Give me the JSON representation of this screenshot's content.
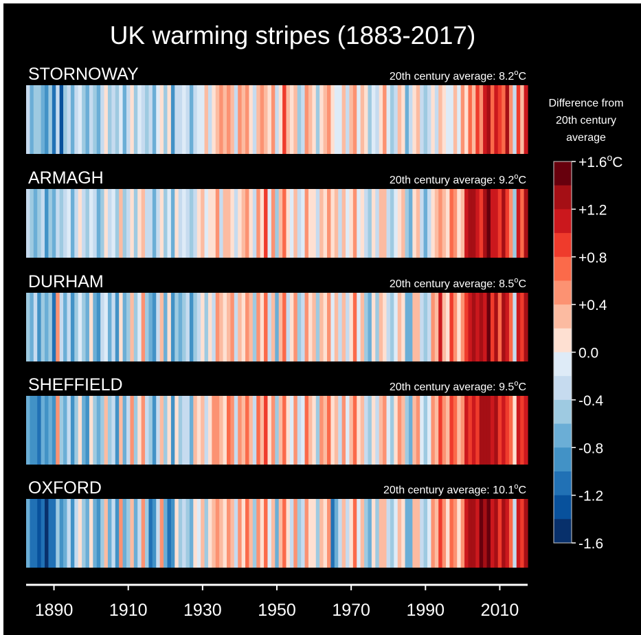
{
  "title": "UK warming stripes (1883-2017)",
  "legend": {
    "title_lines": [
      "Difference from",
      "20th century",
      "average"
    ],
    "ticks": [
      {
        "value": 1.6,
        "label": "+1.6",
        "unit": "oC"
      },
      {
        "value": 1.2,
        "label": "+1.2",
        "unit": ""
      },
      {
        "value": 0.8,
        "label": "+0.8",
        "unit": ""
      },
      {
        "value": 0.4,
        "label": "+0.4",
        "unit": ""
      },
      {
        "value": 0.0,
        "label": "0.0",
        "unit": ""
      },
      {
        "value": -0.4,
        "label": "-0.4",
        "unit": ""
      },
      {
        "value": -0.8,
        "label": "-0.8",
        "unit": ""
      },
      {
        "value": -1.2,
        "label": "-1.2",
        "unit": ""
      },
      {
        "value": -1.6,
        "label": "-1.6",
        "unit": ""
      }
    ],
    "colors": [
      "#67000d",
      "#a50f15",
      "#cb181d",
      "#ef3b2c",
      "#fb6a4a",
      "#fc9272",
      "#fcbba1",
      "#fee0d2",
      "#deebf7",
      "#c6dbef",
      "#9ecae1",
      "#6baed6",
      "#4292c6",
      "#2171b5",
      "#08519c",
      "#08306b"
    ]
  },
  "chart_data": {
    "type": "heatmap",
    "title": "UK warming stripes (1883-2017)",
    "x_start": 1883,
    "x_end": 2017,
    "x_ticks": [
      1890,
      1910,
      1930,
      1950,
      1970,
      1990,
      2010
    ],
    "value_range": [
      -1.6,
      1.6
    ],
    "value_unit": "°C",
    "series": [
      {
        "name": "STORNOWAY",
        "average_label": "20th century average: 8.2",
        "average_value": 8.2,
        "values": [
          -0.3,
          -0.6,
          -0.4,
          -0.5,
          -0.7,
          -0.9,
          -0.5,
          -1.1,
          -0.3,
          -1.3,
          -0.4,
          -0.2,
          -0.6,
          -0.3,
          -0.1,
          -0.4,
          -0.6,
          -0.2,
          -0.5,
          -0.7,
          -0.3,
          0.1,
          -0.5,
          -0.2,
          -0.4,
          -0.1,
          -0.6,
          -0.3,
          0.1,
          -0.4,
          0.0,
          -0.2,
          -0.5,
          -0.3,
          -0.6,
          -0.1,
          0.2,
          -0.4,
          0.1,
          -0.8,
          -0.3,
          -0.2,
          -0.1,
          -0.3,
          -0.7,
          -0.2,
          -0.1,
          0.0,
          0.3,
          -0.2,
          0.1,
          0.4,
          0.5,
          0.3,
          0.5,
          0.4,
          -0.2,
          0.5,
          0.3,
          0.6,
          0.2,
          -0.3,
          0.4,
          0.5,
          0.3,
          0.1,
          0.6,
          -0.2,
          0.2,
          0.9,
          0.4,
          0.1,
          0.3,
          -0.4,
          -0.2,
          0.5,
          0.3,
          0.2,
          -0.4,
          0.1,
          0.3,
          0.6,
          0.2,
          -0.1,
          0.0,
          0.4,
          -0.2,
          0.3,
          0.5,
          -0.1,
          0.3,
          0.1,
          -0.5,
          0.0,
          -0.3,
          0.2,
          0.5,
          -0.1,
          -0.4,
          -0.2,
          0.3,
          0.1,
          -0.6,
          -0.3,
          0.2,
          0.4,
          -0.2,
          -0.5,
          -0.3,
          0.1,
          -0.2,
          0.4,
          0.2,
          0.0,
          -0.1,
          0.3,
          0.0,
          0.5,
          0.2,
          0.8,
          0.3,
          0.9,
          0.6,
          1.1,
          1.4,
          0.8,
          1.2,
          1.0,
          0.7,
          1.3,
          0.5,
          -0.2,
          1.0,
          0.4,
          1.2
        ]
      },
      {
        "name": "ARMAGH",
        "average_label": "20th century average: 9.2",
        "average_value": 9.2,
        "values": [
          -0.2,
          -0.4,
          -0.7,
          -0.5,
          -0.3,
          -0.8,
          -0.4,
          -0.6,
          -0.2,
          -0.5,
          -0.3,
          -0.1,
          -0.7,
          -0.3,
          0.1,
          -0.2,
          -0.5,
          0.0,
          -0.3,
          -0.6,
          -0.4,
          0.2,
          -0.3,
          -0.1,
          -0.5,
          0.3,
          -0.4,
          -0.2,
          0.2,
          -0.5,
          0.1,
          0.4,
          -0.3,
          -0.2,
          -0.6,
          -0.3,
          0.2,
          -0.5,
          0.0,
          -0.7,
          0.1,
          -0.3,
          -0.1,
          -0.2,
          -0.5,
          -0.3,
          0.1,
          0.3,
          -0.1,
          0.2,
          0.1,
          0.5,
          -0.2,
          0.3,
          0.4,
          0.2,
          -0.3,
          0.1,
          0.3,
          0.5,
          0.1,
          -0.2,
          0.6,
          0.2,
          0.9,
          -0.1,
          0.5,
          -0.4,
          0.3,
          0.8,
          0.2,
          -0.1,
          0.4,
          -0.3,
          0.0,
          0.6,
          0.2,
          0.1,
          -0.3,
          0.4,
          0.2,
          0.5,
          0.1,
          0.3,
          -0.2,
          0.3,
          -0.1,
          0.2,
          0.6,
          0.0,
          0.2,
          -0.2,
          -0.4,
          0.1,
          -0.3,
          0.3,
          0.4,
          -0.2,
          -0.5,
          0.0,
          0.2,
          0.3,
          -0.4,
          -0.6,
          0.1,
          0.3,
          -0.3,
          -0.7,
          -0.2,
          0.2,
          0.4,
          0.6,
          0.3,
          0.2,
          0.7,
          0.5,
          0.1,
          0.4,
          1.1,
          1.3,
          1.4,
          1.2,
          1.0,
          1.3,
          1.5,
          1.1,
          1.2,
          0.9,
          1.4,
          1.0,
          0.6,
          -0.4,
          1.1,
          0.7,
          1.3
        ]
      },
      {
        "name": "DURHAM",
        "average_label": "20th century average: 8.5",
        "average_value": 8.5,
        "values": [
          -0.4,
          -0.6,
          -0.3,
          -0.9,
          -0.5,
          -0.7,
          -0.4,
          -1.0,
          0.6,
          -0.3,
          -0.6,
          -0.2,
          -0.8,
          -0.4,
          -0.1,
          -0.5,
          -0.7,
          0.1,
          -0.6,
          -0.8,
          -0.3,
          0.0,
          -0.6,
          -0.2,
          -0.9,
          0.2,
          -0.7,
          -0.4,
          0.3,
          -0.5,
          -0.1,
          0.5,
          -0.4,
          -0.6,
          -0.8,
          -0.3,
          0.3,
          -0.6,
          0.1,
          -0.9,
          -0.4,
          -0.7,
          -0.5,
          -0.3,
          -0.8,
          -0.5,
          -0.2,
          0.2,
          -0.4,
          0.1,
          -0.3,
          0.5,
          0.4,
          0.1,
          0.3,
          0.6,
          -0.3,
          0.4,
          0.2,
          0.5,
          0.3,
          -0.4,
          0.6,
          0.2,
          0.8,
          -0.2,
          0.4,
          -0.6,
          0.3,
          0.7,
          -0.3,
          0.2,
          0.5,
          -0.4,
          -0.2,
          0.6,
          0.1,
          0.3,
          -0.5,
          0.4,
          0.2,
          0.6,
          0.0,
          0.4,
          -0.3,
          0.3,
          -0.2,
          0.1,
          0.7,
          -0.1,
          0.3,
          -0.4,
          -0.6,
          0.1,
          -0.4,
          0.3,
          0.2,
          -0.3,
          -0.5,
          0.0,
          0.4,
          0.2,
          -0.6,
          -0.7,
          0.3,
          0.4,
          -0.2,
          -0.5,
          -0.3,
          0.5,
          0.3,
          1.1,
          0.4,
          0.2,
          0.9,
          0.6,
          0.2,
          0.5,
          1.0,
          1.2,
          1.3,
          1.1,
          1.4,
          1.2,
          1.5,
          1.0,
          1.3,
          0.8,
          1.3,
          1.1,
          0.7,
          -0.2,
          1.2,
          0.9,
          1.4
        ]
      },
      {
        "name": "SHEFFIELD",
        "average_label": "20th century average: 9.5",
        "average_value": 9.5,
        "values": [
          -0.7,
          -0.9,
          -0.8,
          -1.0,
          -0.6,
          -0.9,
          -0.7,
          -0.8,
          0.5,
          -0.4,
          -0.7,
          -0.3,
          -0.9,
          -0.5,
          0.1,
          -0.6,
          -0.8,
          0.2,
          -0.5,
          -0.7,
          -0.4,
          0.3,
          -0.5,
          -0.2,
          -0.8,
          0.4,
          -0.6,
          -0.3,
          0.5,
          -0.4,
          0.1,
          0.6,
          -0.3,
          -0.5,
          -0.9,
          -0.2,
          0.4,
          -0.5,
          0.2,
          -0.8,
          0.1,
          -0.4,
          -0.2,
          -0.3,
          -0.6,
          0.3,
          0.1,
          0.4,
          -0.3,
          0.2,
          0.5,
          0.6,
          0.4,
          0.2,
          0.7,
          0.5,
          -0.2,
          0.6,
          0.3,
          0.8,
          0.4,
          -0.3,
          0.7,
          0.3,
          0.9,
          0.1,
          0.5,
          -0.5,
          0.4,
          0.8,
          0.2,
          -0.1,
          0.6,
          -0.3,
          -0.1,
          0.7,
          0.3,
          0.2,
          -0.4,
          0.5,
          0.3,
          0.7,
          0.2,
          0.4,
          -0.2,
          0.5,
          0.0,
          0.3,
          0.8,
          0.1,
          0.4,
          -0.3,
          -0.5,
          0.2,
          -0.3,
          0.4,
          0.5,
          -0.1,
          -0.4,
          0.1,
          0.5,
          0.3,
          -0.5,
          -0.6,
          0.4,
          0.5,
          -0.1,
          -0.4,
          0.0,
          0.6,
          0.4,
          1.0,
          0.6,
          0.3,
          1.0,
          0.7,
          0.3,
          0.6,
          1.1,
          1.0,
          1.2,
          0.9,
          1.3,
          1.3,
          1.3,
          1.1,
          1.3,
          0.9,
          1.2,
          1.0,
          0.8,
          0.1,
          1.1,
          0.9,
          1.2
        ]
      },
      {
        "name": "OXFORD",
        "average_label": "20th century average: 10.1",
        "average_value": 10.1,
        "values": [
          -0.6,
          -1.0,
          -1.2,
          -1.3,
          -1.1,
          -1.4,
          -1.2,
          -1.0,
          -0.4,
          -0.8,
          -0.6,
          -0.2,
          -0.9,
          -0.3,
          0.2,
          -0.5,
          -0.7,
          0.1,
          -0.6,
          -0.9,
          -0.4,
          0.3,
          -0.6,
          -0.3,
          -0.8,
          0.5,
          -0.7,
          -0.4,
          0.4,
          -0.6,
          -0.2,
          0.6,
          -0.5,
          -1.2,
          -0.9,
          -0.3,
          0.5,
          -0.6,
          -1.1,
          -0.9,
          0.1,
          -0.5,
          -0.2,
          -0.4,
          -0.7,
          0.2,
          0.0,
          0.3,
          -0.4,
          0.1,
          0.4,
          0.6,
          0.3,
          0.1,
          0.5,
          0.4,
          -0.3,
          0.5,
          0.2,
          0.7,
          0.3,
          -0.4,
          0.6,
          0.2,
          0.8,
          0.0,
          0.4,
          -0.6,
          0.3,
          0.7,
          0.1,
          -0.2,
          0.5,
          -0.4,
          -0.2,
          0.6,
          0.2,
          0.1,
          -0.5,
          0.4,
          0.2,
          0.6,
          -1.0,
          -0.6,
          -0.3,
          0.4,
          -0.2,
          0.2,
          0.7,
          0.0,
          0.3,
          -0.4,
          -0.6,
          0.1,
          -0.4,
          0.3,
          0.4,
          -0.2,
          -0.5,
          0.0,
          0.4,
          0.2,
          -0.6,
          -0.7,
          0.3,
          0.4,
          -0.2,
          -0.5,
          -0.1,
          0.5,
          0.3,
          0.9,
          0.5,
          0.2,
          0.8,
          0.6,
          0.2,
          0.5,
          1.2,
          1.3,
          1.4,
          1.2,
          1.5,
          1.3,
          1.6,
          1.2,
          1.4,
          1.0,
          1.4,
          1.1,
          0.8,
          -0.2,
          1.2,
          0.9,
          1.3
        ]
      }
    ]
  }
}
